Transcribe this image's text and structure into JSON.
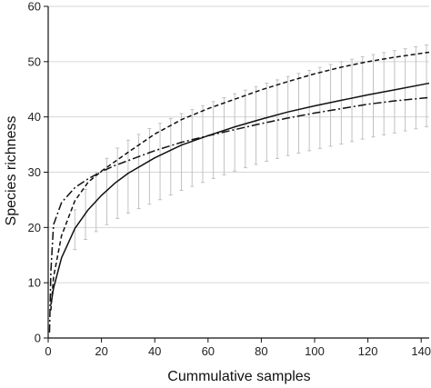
{
  "chart_data": {
    "type": "line",
    "title": "",
    "xlabel": "Cummulative samples",
    "ylabel": "Species richness",
    "xlim": [
      0,
      143
    ],
    "ylim": [
      0,
      60
    ],
    "xticks": [
      0,
      20,
      40,
      60,
      80,
      100,
      120,
      140
    ],
    "yticks": [
      0,
      10,
      20,
      30,
      40,
      50,
      60
    ],
    "grid": "horizontal",
    "legend": "none",
    "series": [
      {
        "line_style": "solid",
        "color": "#111111",
        "x": [
          1,
          2,
          5,
          10,
          15,
          20,
          25,
          30,
          40,
          50,
          60,
          70,
          80,
          90,
          100,
          110,
          120,
          130,
          143
        ],
        "y": [
          6,
          9,
          14.5,
          19.8,
          23.2,
          25.8,
          28,
          29.8,
          32.6,
          34.9,
          36.6,
          38.2,
          39.6,
          40.9,
          42,
          43,
          44,
          44.9,
          46.1
        ],
        "error_band": {
          "color": "#bbbbbb",
          "lower": [
            null,
            null,
            null,
            16,
            18.3,
            19.9,
            21.4,
            22.6,
            24.6,
            26.7,
            28.5,
            30.2,
            31.7,
            33,
            34.1,
            35.1,
            36.2,
            37.1,
            38.3
          ],
          "upper": [
            null,
            null,
            null,
            23.2,
            27.8,
            31.5,
            34,
            35.8,
            38.4,
            40.6,
            42.4,
            44.2,
            45.8,
            47.3,
            48.7,
            50,
            51.1,
            52,
            53.1
          ]
        }
      },
      {
        "line_style": "dashed",
        "color": "#111111",
        "x": [
          1,
          2,
          5,
          10,
          15,
          20,
          25,
          30,
          40,
          50,
          60,
          70,
          80,
          90,
          100,
          110,
          120,
          130,
          143
        ],
        "y": [
          5,
          11,
          18.5,
          24.8,
          28.2,
          30.2,
          31.9,
          33.6,
          36.9,
          39.5,
          41.5,
          43.2,
          44.9,
          46.4,
          47.8,
          49,
          50,
          50.8,
          51.7
        ]
      },
      {
        "line_style": "dash-dot",
        "color": "#111111",
        "x": [
          0.5,
          1,
          2,
          5,
          10,
          15,
          20,
          25,
          30,
          40,
          50,
          60,
          70,
          80,
          90,
          100,
          110,
          120,
          130,
          143
        ],
        "y": [
          1,
          12,
          20.5,
          24.5,
          27.2,
          28.8,
          30.1,
          31.2,
          32.1,
          33.9,
          35.4,
          36.6,
          37.7,
          38.8,
          39.8,
          40.7,
          41.5,
          42.3,
          42.9,
          43.5
        ]
      }
    ]
  }
}
